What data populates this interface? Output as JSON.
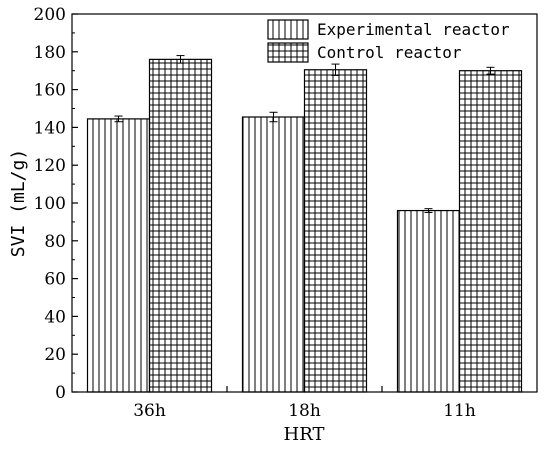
{
  "chart_data": {
    "type": "bar",
    "categories": [
      "36h",
      "18h",
      "11h"
    ],
    "series": [
      {
        "name": "Experimental reactor",
        "pattern": "vertical-lines",
        "values": [
          144.5,
          145.5,
          96.0
        ],
        "errors": [
          1.5,
          2.5,
          1.0
        ]
      },
      {
        "name": "Control reactor",
        "pattern": "grid",
        "values": [
          176.0,
          170.5,
          170.0
        ],
        "errors": [
          2.0,
          3.0,
          1.8
        ]
      }
    ],
    "xlabel": "HRT",
    "ylabel": "SVI (mL/g)",
    "ylim": [
      0,
      200
    ],
    "yticks": [
      0,
      20,
      40,
      60,
      80,
      100,
      120,
      140,
      160,
      180,
      200
    ],
    "grid": false,
    "legend_position": "top-right",
    "colors": {
      "bar_fill": "#ffffff",
      "stroke": "#000000"
    }
  }
}
